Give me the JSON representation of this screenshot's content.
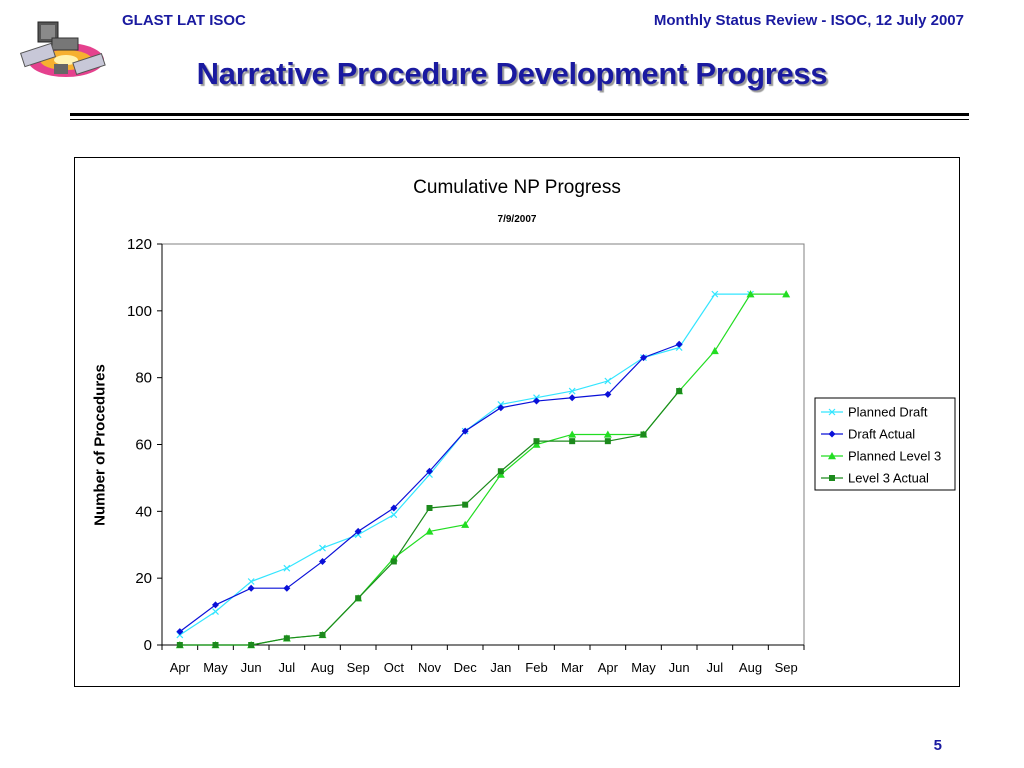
{
  "header": {
    "left": "GLAST LAT ISOC",
    "right": "Monthly Status Review - ISOC, 12 July 2007"
  },
  "slide": {
    "title": "Narrative Procedure Development Progress",
    "page_number": "5"
  },
  "chart_data": {
    "type": "line",
    "title": "Cumulative NP Progress",
    "subtitle": "7/9/2007",
    "xlabel": "",
    "ylabel": "Number of Procedures",
    "ylim": [
      0,
      120
    ],
    "yticks": [
      0,
      20,
      40,
      60,
      80,
      100,
      120
    ],
    "categories": [
      "Apr",
      "May",
      "Jun",
      "Jul",
      "Aug",
      "Sep",
      "Oct",
      "Nov",
      "Dec",
      "Jan",
      "Feb",
      "Mar",
      "Apr",
      "May",
      "Jun",
      "Jul",
      "Aug",
      "Sep"
    ],
    "grid": false,
    "legend_position": "right",
    "series": [
      {
        "name": "Planned Draft",
        "color": "#33e5ff",
        "marker": "x",
        "values": [
          3,
          10,
          19,
          23,
          29,
          33,
          39,
          51,
          64,
          72,
          74,
          76,
          79,
          86,
          89,
          105,
          105,
          null
        ]
      },
      {
        "name": "Draft Actual",
        "color": "#0a10d8",
        "marker": "diamond",
        "values": [
          4,
          12,
          17,
          17,
          25,
          34,
          41,
          52,
          64,
          71,
          73,
          74,
          75,
          86,
          90,
          null,
          null,
          null
        ]
      },
      {
        "name": "Planned Level 3",
        "color": "#22dd22",
        "marker": "triangle",
        "values": [
          0,
          0,
          0,
          2,
          3,
          14,
          26,
          34,
          36,
          51,
          60,
          63,
          63,
          63,
          76,
          88,
          105,
          105
        ]
      },
      {
        "name": "Level 3 Actual",
        "color": "#1c8a1c",
        "marker": "square",
        "values": [
          0,
          0,
          0,
          2,
          3,
          14,
          25,
          41,
          42,
          52,
          61,
          61,
          61,
          63,
          76,
          null,
          null,
          null
        ]
      }
    ]
  }
}
